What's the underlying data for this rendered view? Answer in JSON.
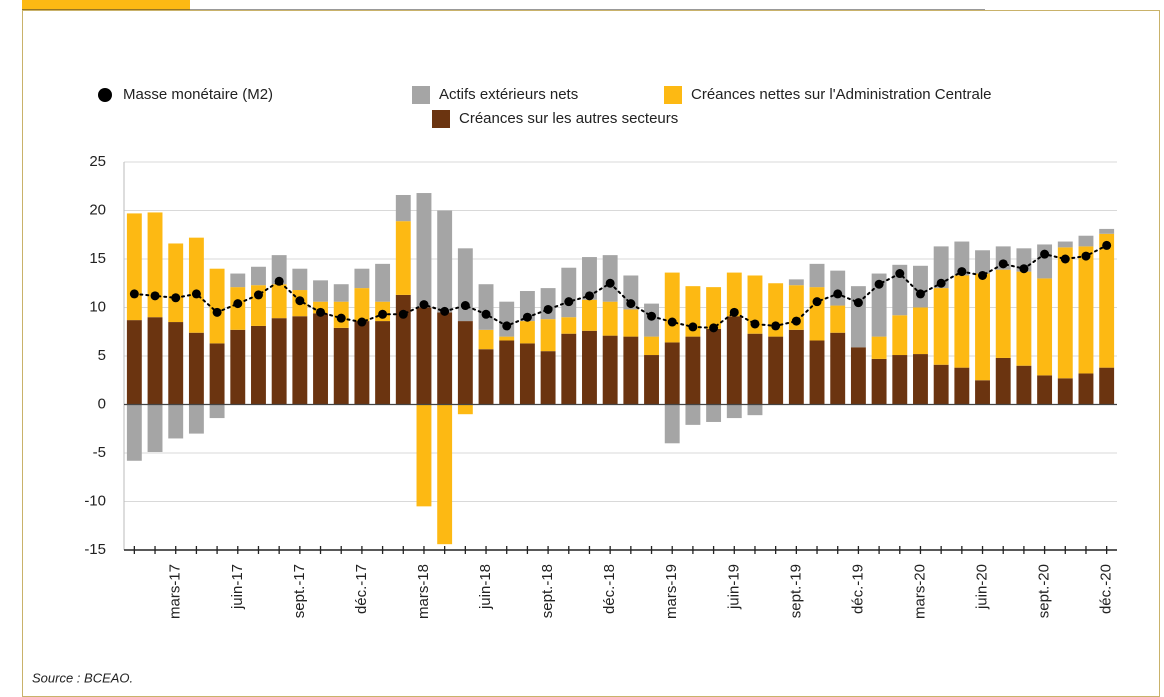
{
  "chart_data": {
    "type": "bar",
    "source": "Source : BCEAO.",
    "categories": [
      null,
      null,
      "mars-17",
      null,
      null,
      "juin-17",
      null,
      null,
      "sept.-17",
      null,
      null,
      "déc.-17",
      null,
      null,
      "mars-18",
      null,
      null,
      "juin-18",
      null,
      null,
      "sept.-18",
      null,
      null,
      "déc.-18",
      null,
      null,
      "mars-19",
      null,
      null,
      "juin-19",
      null,
      null,
      "sept.-19",
      null,
      null,
      "déc.-19",
      null,
      null,
      "mars-20",
      null,
      null,
      "juin-20",
      null,
      null,
      "sept.-20",
      null,
      null,
      "déc.-20"
    ],
    "series": [
      {
        "name": "Masse monétaire (M2)",
        "type": "line",
        "color": "#000000",
        "values": [
          11.4,
          11.2,
          11.0,
          11.4,
          9.5,
          10.4,
          11.3,
          12.7,
          10.7,
          9.5,
          8.9,
          8.5,
          9.3,
          9.3,
          10.3,
          9.6,
          10.2,
          9.3,
          8.1,
          9.0,
          9.8,
          10.6,
          11.2,
          12.5,
          10.4,
          9.1,
          8.5,
          8.0,
          7.9,
          9.5,
          8.3,
          8.1,
          8.6,
          10.6,
          11.4,
          10.5,
          12.4,
          13.5,
          11.4,
          12.5,
          13.7,
          13.3,
          14.5,
          14.0,
          15.5,
          15.0,
          15.3,
          16.4
        ]
      },
      {
        "name": "Actifs extérieurs nets",
        "type": "bar",
        "color": "#a5a5a5",
        "values": [
          -5.8,
          -4.9,
          -3.5,
          -3.0,
          -1.4,
          1.4,
          1.9,
          3.0,
          2.2,
          2.2,
          1.8,
          2.0,
          3.9,
          2.7,
          11.8,
          10.5,
          7.5,
          4.7,
          3.6,
          3.1,
          3.2,
          5.1,
          4.4,
          4.8,
          3.5,
          3.4,
          -4.0,
          -2.1,
          -1.8,
          -1.4,
          -1.1,
          0,
          0.6,
          2.4,
          3.6,
          6.3,
          6.5,
          5.2,
          4.3,
          4.3,
          3.5,
          2.4,
          2.4,
          2.4,
          3.5,
          0.6,
          1.1,
          0.5
        ]
      },
      {
        "name": "Créances nettes sur l'Administration Centrale",
        "type": "bar",
        "color": "#fdb913",
        "values": [
          11.0,
          10.8,
          8.1,
          9.8,
          7.7,
          4.4,
          4.2,
          3.5,
          2.7,
          1.2,
          2.7,
          3.4,
          2.0,
          7.6,
          -10.5,
          -14.4,
          -1.0,
          2.0,
          0.4,
          2.3,
          3.3,
          1.7,
          3.2,
          3.5,
          2.8,
          1.9,
          7.2,
          5.2,
          4.3,
          4.5,
          6.0,
          5.5,
          4.6,
          5.5,
          2.8,
          0,
          2.3,
          4.1,
          4.8,
          7.9,
          9.5,
          11.0,
          9.1,
          9.7,
          10.0,
          13.5,
          13.1,
          13.8
        ]
      },
      {
        "name": "Créances sur les autres secteurs",
        "type": "bar",
        "color": "#6b3410",
        "values": [
          8.7,
          9.0,
          8.5,
          7.4,
          6.3,
          7.7,
          8.1,
          8.9,
          9.1,
          9.4,
          7.9,
          8.6,
          8.6,
          11.3,
          10.0,
          9.5,
          8.6,
          5.7,
          6.6,
          6.3,
          5.5,
          7.3,
          7.6,
          7.1,
          7.0,
          5.1,
          6.4,
          7.0,
          7.8,
          9.1,
          7.3,
          7.0,
          7.7,
          6.6,
          7.4,
          5.9,
          4.7,
          5.1,
          5.2,
          4.1,
          3.8,
          2.5,
          4.8,
          4.0,
          3.0,
          2.7,
          3.2,
          3.8
        ]
      }
    ],
    "stack_order": [
      3,
      2,
      1
    ],
    "ylim": [
      -15,
      25
    ],
    "yticks": [
      -15,
      -10,
      -5,
      0,
      5,
      10,
      15,
      20,
      25
    ],
    "grid": true
  }
}
